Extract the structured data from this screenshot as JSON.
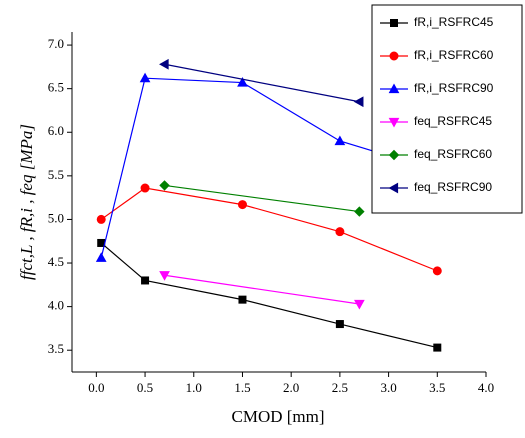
{
  "chart_data": {
    "type": "line",
    "x_label": "CMOD [mm]",
    "y_label": "ffct,L , fR,i , feq [MPa]",
    "xlim": [
      -0.25,
      4.0
    ],
    "ylim": [
      3.25,
      7.15
    ],
    "xticks": [
      {
        "value": 0,
        "label": "0.0"
      },
      0.5,
      {
        "value": 1,
        "label": "1.0"
      },
      1.5,
      {
        "value": 2,
        "label": "2.0"
      },
      2.5,
      {
        "value": 3,
        "label": "3.0"
      },
      3.5,
      {
        "value": 4,
        "label": "4.0"
      }
    ],
    "yticks": [
      3.5,
      {
        "value": 4,
        "label": "4.0"
      },
      4.5,
      {
        "value": 5,
        "label": "5.0"
      },
      5.5,
      {
        "value": 6,
        "label": "6.0"
      },
      6.5,
      {
        "value": 7,
        "label": "7.0"
      }
    ],
    "legend": "upper right",
    "series": [
      {
        "name": "fR,i_RSFRC45",
        "color": "#000000",
        "marker": "square",
        "x": [
          0.05,
          0.5,
          1.5,
          2.5,
          3.5
        ],
        "values": [
          4.73,
          4.3,
          4.08,
          3.8,
          3.53
        ]
      },
      {
        "name": "fR,i_RSFRC60",
        "color": "#ff0000",
        "marker": "circle",
        "x": [
          0.05,
          0.5,
          1.5,
          2.5,
          3.5
        ],
        "values": [
          5.0,
          5.36,
          5.17,
          4.86,
          4.41
        ]
      },
      {
        "name": "fR,i_RSFRC90",
        "color": "#0000ff",
        "marker": "triangle-up",
        "x": [
          0.05,
          0.5,
          1.5,
          2.5,
          3.5
        ],
        "values": [
          4.56,
          6.62,
          6.57,
          5.9,
          5.56
        ]
      },
      {
        "name": "feq_RSFRC45",
        "color": "#ff00ff",
        "marker": "triangle-down",
        "x": [
          0.7,
          2.7
        ],
        "values": [
          4.36,
          4.03
        ]
      },
      {
        "name": "feq_RSFRC60",
        "color": "#008000",
        "marker": "diamond",
        "x": [
          0.7,
          2.7
        ],
        "values": [
          5.39,
          5.09
        ]
      },
      {
        "name": "feq_RSFRC90",
        "color": "#000080",
        "marker": "triangle-left",
        "x": [
          0.7,
          2.7
        ],
        "values": [
          6.78,
          6.35
        ]
      }
    ]
  }
}
